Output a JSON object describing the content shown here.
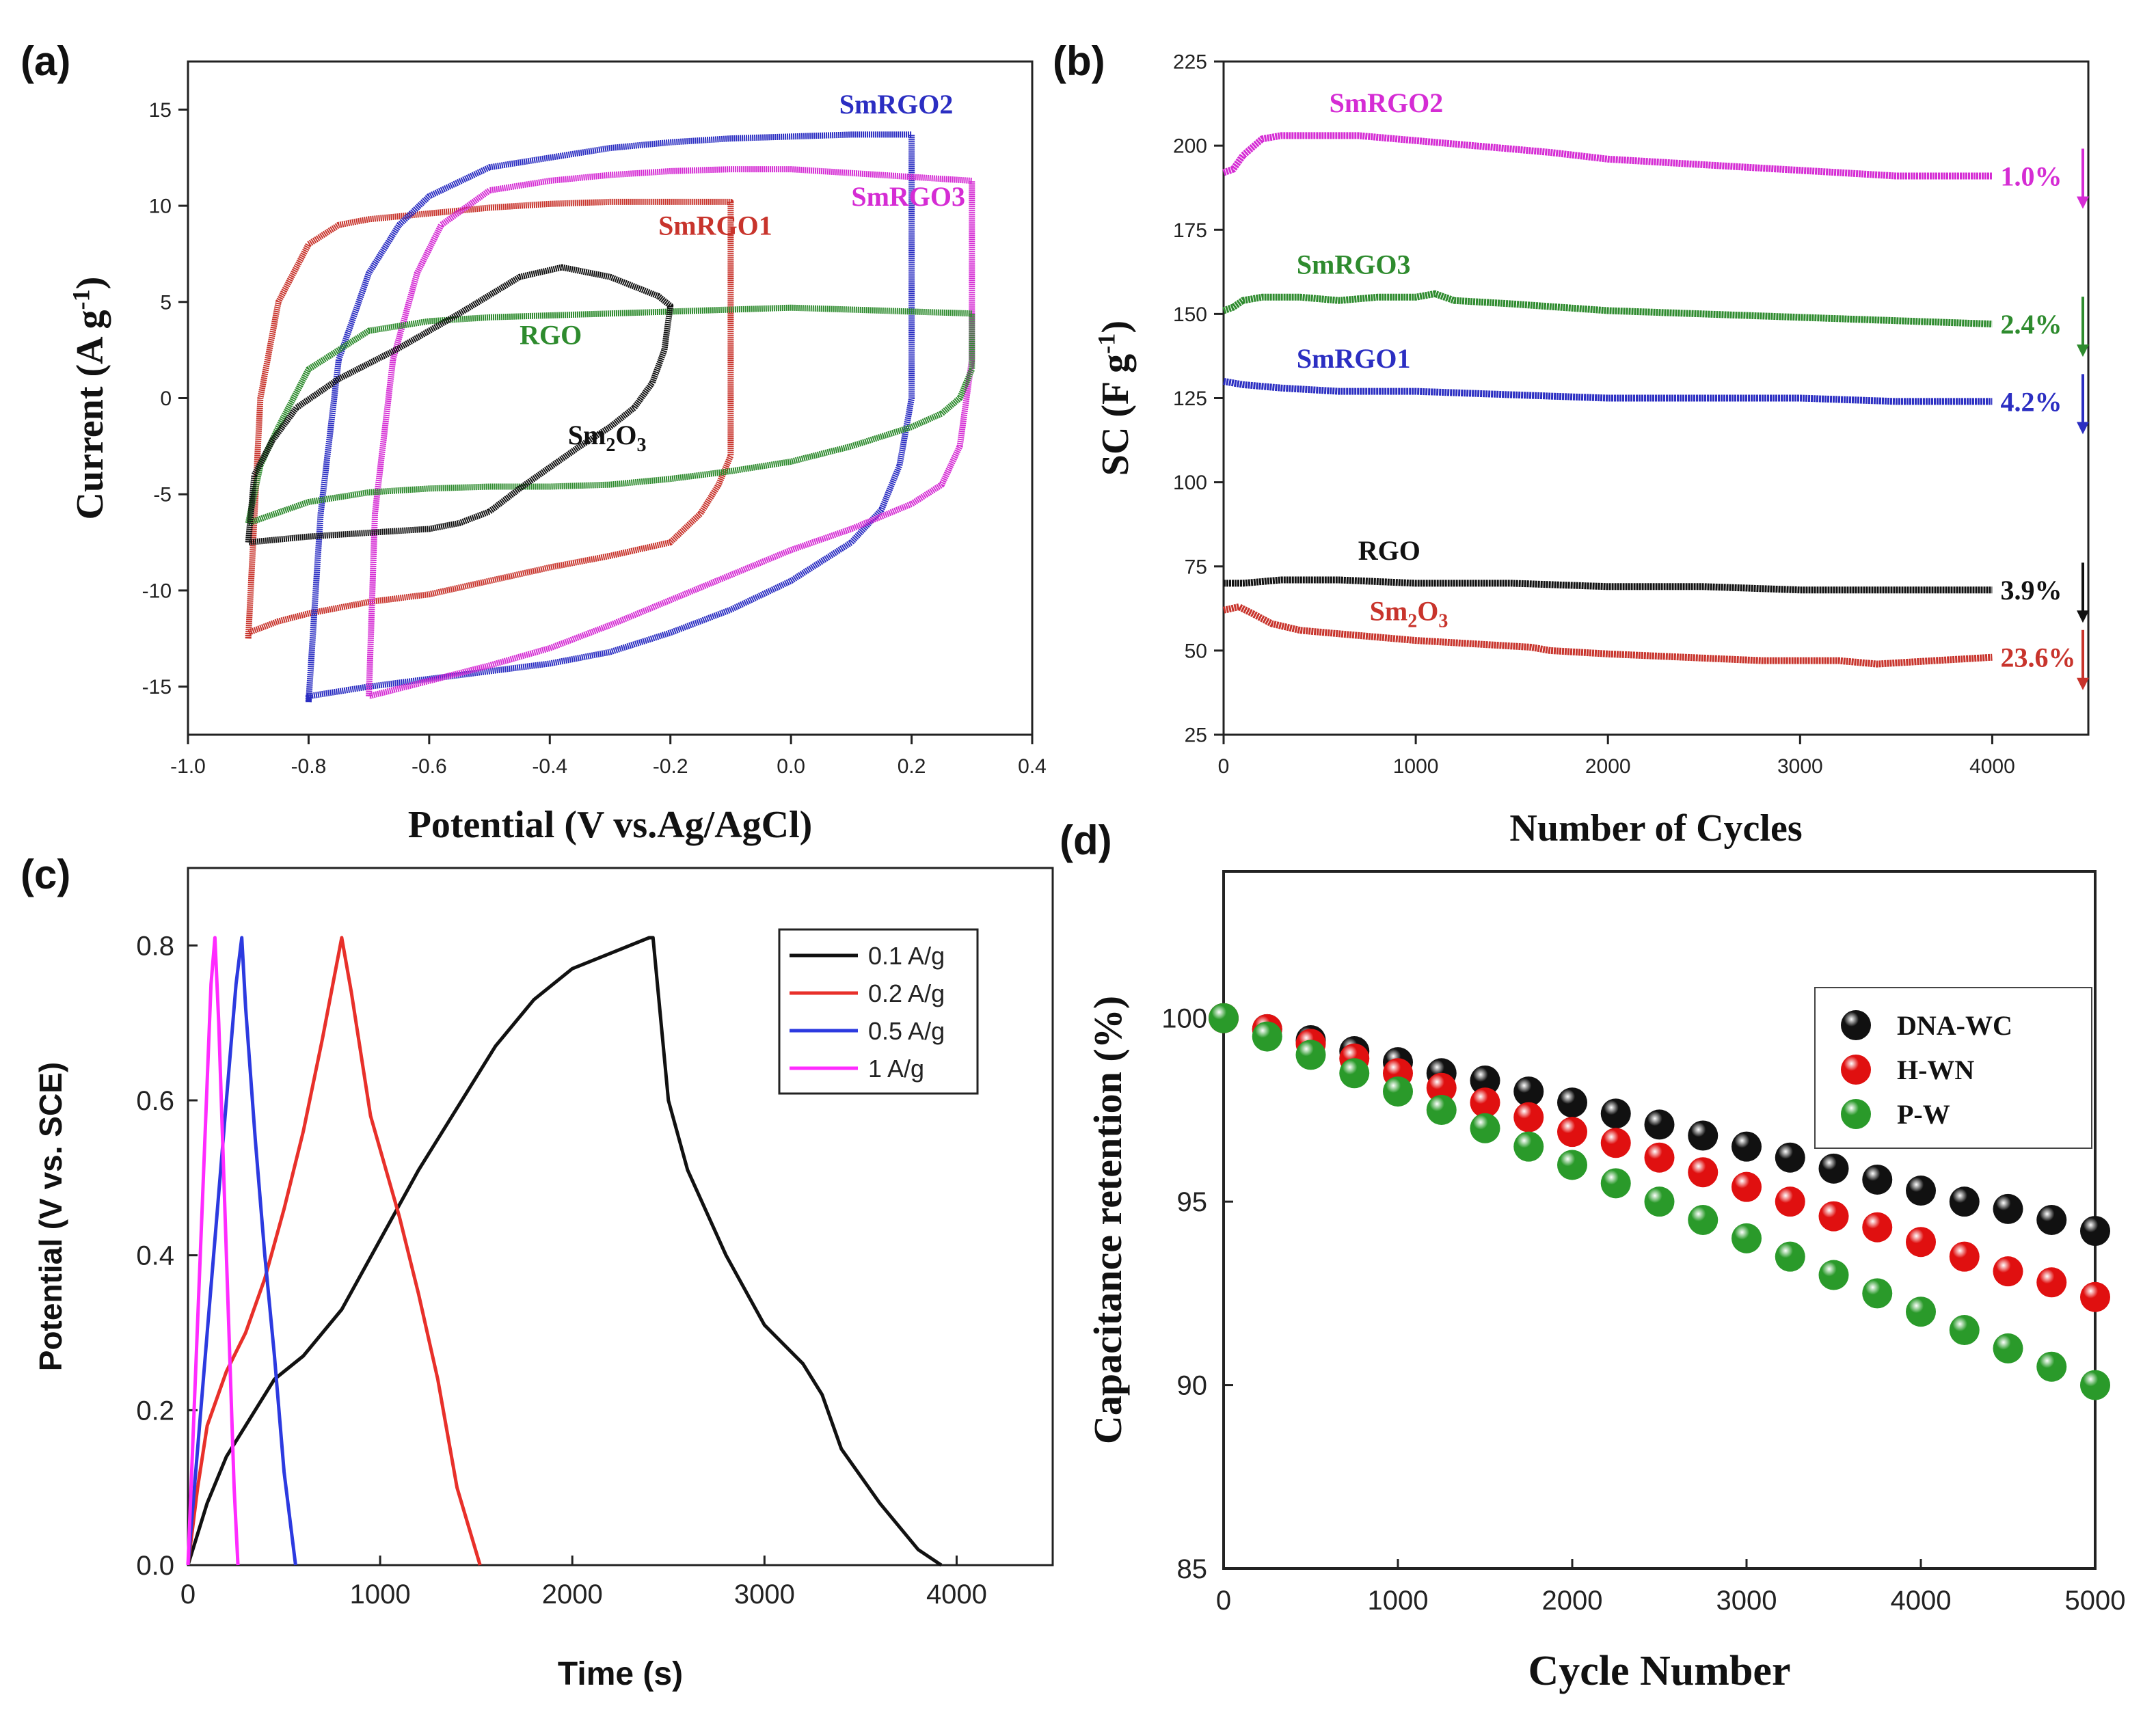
{
  "figure": {
    "panels": [
      {
        "letter": "(a)"
      },
      {
        "letter": "(b)"
      },
      {
        "letter": "(c)"
      },
      {
        "letter": "(d)"
      }
    ]
  },
  "chart_data": [
    {
      "id": "a",
      "type": "line",
      "title": "",
      "xlabel": "Potential (V vs.Ag/AgCl)",
      "ylabel": "Current (A g-1)",
      "ylabel_parts": {
        "main": "Current (A g",
        "sup": "-1",
        "end": ")"
      },
      "xlim": [
        -1.0,
        0.4
      ],
      "ylim": [
        -17.5,
        17.5
      ],
      "xticks": [
        -1.0,
        -0.8,
        -0.6,
        -0.4,
        -0.2,
        0.0,
        0.2,
        0.4
      ],
      "xtick_labels": [
        "-1.0",
        "-0.8",
        "-0.6",
        "-0.4",
        "-0.2",
        "0.0",
        "0.2",
        "0.4"
      ],
      "yticks": [
        -15,
        -10,
        -5,
        0,
        5,
        10,
        15
      ],
      "ytick_labels": [
        "-15",
        "-10",
        "-5",
        "0",
        "5",
        "10",
        "15"
      ],
      "series": [
        {
          "name": "SmRGO1",
          "color": "#c8342c",
          "label": {
            "text": "SmRGO1",
            "at": [
              -0.22,
              8.5
            ]
          },
          "x": [
            -0.9,
            -0.88,
            -0.85,
            -0.8,
            -0.75,
            -0.7,
            -0.6,
            -0.5,
            -0.4,
            -0.3,
            -0.2,
            -0.1,
            -0.1,
            -0.12,
            -0.15,
            -0.2,
            -0.3,
            -0.4,
            -0.5,
            -0.6,
            -0.7,
            -0.8,
            -0.85,
            -0.9,
            -0.9
          ],
          "y": [
            -12.5,
            0,
            5,
            8,
            9,
            9.3,
            9.6,
            9.9,
            10.1,
            10.2,
            10.2,
            10.2,
            -3,
            -4.5,
            -6,
            -7.5,
            -8.2,
            -8.8,
            -9.5,
            -10.2,
            -10.6,
            -11.2,
            -11.6,
            -12.2,
            -12.5
          ]
        },
        {
          "name": "SmRGO2",
          "color": "#2b2ec2",
          "label": {
            "text": "SmRGO2",
            "at": [
              0.08,
              14.8
            ]
          },
          "x": [
            -0.8,
            -0.78,
            -0.75,
            -0.7,
            -0.65,
            -0.6,
            -0.5,
            -0.4,
            -0.3,
            -0.2,
            -0.1,
            0.0,
            0.1,
            0.2,
            0.2,
            0.18,
            0.15,
            0.1,
            0.0,
            -0.1,
            -0.2,
            -0.3,
            -0.4,
            -0.5,
            -0.6,
            -0.7,
            -0.8,
            -0.8
          ],
          "y": [
            -15.8,
            -6,
            2,
            6.5,
            9,
            10.5,
            12.0,
            12.5,
            13.0,
            13.3,
            13.5,
            13.6,
            13.7,
            13.7,
            0,
            -3.5,
            -5.8,
            -7.5,
            -9.5,
            -11,
            -12.2,
            -13.2,
            -13.8,
            -14.2,
            -14.6,
            -15.0,
            -15.5,
            -15.8
          ]
        },
        {
          "name": "SmRGO3",
          "color": "#d52cd4",
          "label": {
            "text": "SmRGO3",
            "at": [
              0.1,
              10.0
            ]
          },
          "x": [
            -0.7,
            -0.69,
            -0.66,
            -0.62,
            -0.58,
            -0.5,
            -0.4,
            -0.3,
            -0.2,
            -0.1,
            0.0,
            0.1,
            0.2,
            0.3,
            0.3,
            0.28,
            0.25,
            0.2,
            0.1,
            0.0,
            -0.1,
            -0.2,
            -0.3,
            -0.4,
            -0.5,
            -0.6,
            -0.7
          ],
          "y": [
            -15.5,
            -6,
            2,
            6.5,
            9,
            10.8,
            11.3,
            11.6,
            11.8,
            11.9,
            11.9,
            11.7,
            11.5,
            11.3,
            2,
            -2.5,
            -4.5,
            -5.5,
            -6.8,
            -7.9,
            -9.2,
            -10.5,
            -11.8,
            -13.0,
            -13.9,
            -14.7,
            -15.5
          ]
        },
        {
          "name": "RGO",
          "color": "#2e8b2e",
          "label": {
            "text": "RGO",
            "at": [
              -0.45,
              2.8
            ]
          },
          "x": [
            -0.9,
            -0.88,
            -0.85,
            -0.8,
            -0.7,
            -0.6,
            -0.5,
            -0.4,
            -0.3,
            -0.2,
            -0.1,
            0.0,
            0.1,
            0.2,
            0.3,
            0.3,
            0.28,
            0.25,
            0.2,
            0.1,
            0.0,
            -0.1,
            -0.2,
            -0.3,
            -0.4,
            -0.5,
            -0.6,
            -0.7,
            -0.8,
            -0.9
          ],
          "y": [
            -6.5,
            -3.5,
            -1.5,
            1.5,
            3.5,
            4.0,
            4.2,
            4.3,
            4.4,
            4.5,
            4.6,
            4.7,
            4.6,
            4.5,
            4.4,
            1.5,
            0,
            -0.8,
            -1.5,
            -2.5,
            -3.3,
            -3.8,
            -4.2,
            -4.5,
            -4.6,
            -4.6,
            -4.7,
            -4.9,
            -5.4,
            -6.5
          ]
        },
        {
          "name": "Sm2O3",
          "color": "#111111",
          "label": {
            "text": "Sm",
            "sub": "2",
            "tail": "O",
            "sub2": "3",
            "at": [
              -0.37,
              -2.4
            ]
          },
          "x": [
            -0.9,
            -0.89,
            -0.86,
            -0.82,
            -0.75,
            -0.65,
            -0.55,
            -0.45,
            -0.38,
            -0.3,
            -0.22,
            -0.2,
            -0.21,
            -0.23,
            -0.26,
            -0.3,
            -0.35,
            -0.4,
            -0.45,
            -0.5,
            -0.55,
            -0.6,
            -0.7,
            -0.8,
            -0.9
          ],
          "y": [
            -7.5,
            -4,
            -2.2,
            -0.5,
            1.0,
            2.6,
            4.4,
            6.3,
            6.8,
            6.3,
            5.3,
            4.8,
            2.5,
            0.8,
            -0.5,
            -1.5,
            -2.5,
            -3.6,
            -4.7,
            -5.9,
            -6.5,
            -6.8,
            -7.0,
            -7.2,
            -7.5
          ]
        }
      ]
    },
    {
      "id": "b",
      "type": "line",
      "title": "",
      "xlabel": "Number of Cycles",
      "ylabel": "SC (F g-1)",
      "ylabel_parts": {
        "main": "SC (F g",
        "sup": "-1",
        "end": ")"
      },
      "xlim": [
        0,
        4500
      ],
      "ylim": [
        25,
        225
      ],
      "xticks": [
        0,
        1000,
        2000,
        3000,
        4000
      ],
      "xtick_labels": [
        "0",
        "1000",
        "2000",
        "3000",
        "4000"
      ],
      "yticks": [
        25,
        50,
        75,
        100,
        125,
        150,
        175,
        200,
        225
      ],
      "ytick_labels": [
        "25",
        "50",
        "75",
        "100",
        "125",
        "150",
        "175",
        "200",
        "225"
      ],
      "series": [
        {
          "name": "SmRGO2",
          "color": "#d52cd4",
          "label": {
            "text": "SmRGO2",
            "at": [
              550,
              210
            ]
          },
          "retention": "1.0%",
          "x": [
            0,
            50,
            100,
            200,
            300,
            500,
            700,
            900,
            1100,
            1300,
            1500,
            1700,
            2000,
            2300,
            2600,
            2900,
            3200,
            3500,
            3800,
            4000
          ],
          "y": [
            192,
            193,
            197,
            202,
            203,
            203,
            203,
            202,
            201,
            200,
            199,
            198,
            196,
            195,
            194,
            193,
            192,
            191,
            191,
            191
          ]
        },
        {
          "name": "SmRGO3",
          "color": "#2e8b2e",
          "label": {
            "text": "SmRGO3",
            "at": [
              380,
              162
            ]
          },
          "retention": "2.4%",
          "x": [
            0,
            50,
            100,
            200,
            400,
            600,
            800,
            1000,
            1100,
            1200,
            1500,
            2000,
            2500,
            3000,
            3500,
            4000
          ],
          "y": [
            151,
            152,
            154,
            155,
            155,
            154,
            155,
            155,
            156,
            154,
            153,
            151,
            150,
            149,
            148,
            147
          ]
        },
        {
          "name": "SmRGO1",
          "color": "#2b2ec2",
          "label": {
            "text": "SmRGO1",
            "at": [
              380,
              134
            ]
          },
          "retention": "4.2%",
          "x": [
            0,
            100,
            300,
            600,
            1000,
            1500,
            2000,
            2500,
            3000,
            3500,
            4000
          ],
          "y": [
            130,
            129,
            128,
            127,
            127,
            126,
            125,
            125,
            125,
            124,
            124
          ]
        },
        {
          "name": "RGO",
          "color": "#111111",
          "label": {
            "text": "RGO",
            "at": [
              700,
              77
            ]
          },
          "retention": "3.9%",
          "x": [
            0,
            100,
            300,
            600,
            1000,
            1500,
            2000,
            2500,
            3000,
            3500,
            4000
          ],
          "y": [
            70,
            70,
            71,
            71,
            70,
            70,
            69,
            69,
            68,
            68,
            68
          ]
        },
        {
          "name": "Sm2O3",
          "color": "#c8342c",
          "label": {
            "text": "Sm",
            "sub": "2",
            "tail": "O",
            "sub2": "3",
            "at": [
              760,
              59
            ]
          },
          "retention": "23.6%",
          "x": [
            0,
            80,
            150,
            250,
            400,
            600,
            800,
            1000,
            1300,
            1600,
            1700,
            2000,
            2400,
            2800,
            3200,
            3400,
            3700,
            4000
          ],
          "y": [
            62,
            63,
            61,
            58,
            56,
            55,
            54,
            53,
            52,
            51,
            50,
            49,
            48,
            47,
            47,
            46,
            47,
            48
          ]
        }
      ]
    },
    {
      "id": "c",
      "type": "line",
      "title": "",
      "xlabel": "Time (s)",
      "ylabel": "Potential (V vs. SCE)",
      "xlim": [
        0,
        4500
      ],
      "ylim": [
        0.0,
        0.9
      ],
      "xticks": [
        0,
        1000,
        2000,
        3000,
        4000
      ],
      "xtick_labels": [
        "0",
        "1000",
        "2000",
        "3000",
        "4000"
      ],
      "yticks": [
        0.0,
        0.2,
        0.4,
        0.6,
        0.8
      ],
      "ytick_labels": [
        "0.0",
        "0.2",
        "0.4",
        "0.6",
        "0.8"
      ],
      "legend": {
        "position": "top-right"
      },
      "series": [
        {
          "name": "0.1 A/g",
          "color": "#111111",
          "x": [
            0,
            100,
            200,
            300,
            450,
            600,
            800,
            1000,
            1200,
            1400,
            1600,
            1800,
            2000,
            2200,
            2400,
            2420,
            2500,
            2600,
            2800,
            3000,
            3200,
            3300,
            3400,
            3600,
            3800,
            3920
          ],
          "y": [
            0.0,
            0.08,
            0.14,
            0.18,
            0.24,
            0.27,
            0.33,
            0.42,
            0.51,
            0.59,
            0.67,
            0.73,
            0.77,
            0.79,
            0.81,
            0.81,
            0.6,
            0.51,
            0.4,
            0.31,
            0.26,
            0.22,
            0.15,
            0.08,
            0.02,
            0.0
          ]
        },
        {
          "name": "0.2 A/g",
          "color": "#e8302a",
          "x": [
            0,
            50,
            100,
            200,
            300,
            400,
            500,
            600,
            700,
            800,
            850,
            950,
            1100,
            1200,
            1300,
            1400,
            1520
          ],
          "y": [
            0.0,
            0.1,
            0.18,
            0.25,
            0.3,
            0.37,
            0.46,
            0.56,
            0.68,
            0.81,
            0.74,
            0.58,
            0.45,
            0.35,
            0.24,
            0.1,
            0.0
          ]
        },
        {
          "name": "0.5 A/g",
          "color": "#2c3ae0",
          "x": [
            0,
            50,
            100,
            150,
            200,
            250,
            280,
            300,
            350,
            400,
            450,
            500,
            560
          ],
          "y": [
            0.0,
            0.15,
            0.3,
            0.45,
            0.6,
            0.75,
            0.81,
            0.72,
            0.55,
            0.4,
            0.27,
            0.12,
            0.0
          ]
        },
        {
          "name": "1 A/g",
          "color": "#ff2bff",
          "x": [
            0,
            40,
            80,
            120,
            140,
            160,
            200,
            240,
            260
          ],
          "y": [
            0.0,
            0.25,
            0.5,
            0.75,
            0.81,
            0.7,
            0.4,
            0.1,
            0.0
          ]
        }
      ]
    },
    {
      "id": "d",
      "type": "scatter",
      "title": "",
      "xlabel": "Cycle Number",
      "ylabel": "Capacitance retention (%)",
      "xlim": [
        0,
        5000
      ],
      "ylim": [
        85,
        104
      ],
      "xticks": [
        0,
        1000,
        2000,
        3000,
        4000,
        5000
      ],
      "xtick_labels": [
        "0",
        "1000",
        "2000",
        "3000",
        "4000",
        "5000"
      ],
      "yticks": [
        85,
        90,
        95,
        100
      ],
      "ytick_labels": [
        "85",
        "90",
        "95",
        "100"
      ],
      "legend": {
        "position": "upper-right"
      },
      "x": [
        0,
        250,
        500,
        750,
        1000,
        1250,
        1500,
        1750,
        2000,
        2250,
        2500,
        2750,
        3000,
        3250,
        3500,
        3750,
        4000,
        4250,
        4500,
        4750,
        5000
      ],
      "series": [
        {
          "name": "DNA-WC",
          "color": "#111111",
          "values": [
            100,
            99.7,
            99.4,
            99.1,
            98.8,
            98.5,
            98.3,
            98.0,
            97.7,
            97.4,
            97.1,
            96.8,
            96.5,
            96.2,
            95.9,
            95.6,
            95.3,
            95.0,
            94.8,
            94.5,
            94.2
          ]
        },
        {
          "name": "H-WN",
          "color": "#e01010",
          "values": [
            100,
            99.7,
            99.3,
            98.9,
            98.5,
            98.1,
            97.7,
            97.3,
            96.9,
            96.6,
            96.2,
            95.8,
            95.4,
            95.0,
            94.6,
            94.3,
            93.9,
            93.5,
            93.1,
            92.8,
            92.4
          ]
        },
        {
          "name": "P-W",
          "color": "#2a9a2a",
          "values": [
            100,
            99.5,
            99.0,
            98.5,
            98.0,
            97.5,
            97.0,
            96.5,
            96.0,
            95.5,
            95.0,
            94.5,
            94.0,
            93.5,
            93.0,
            92.5,
            92.0,
            91.5,
            91.0,
            90.5,
            90.0
          ]
        }
      ]
    }
  ]
}
